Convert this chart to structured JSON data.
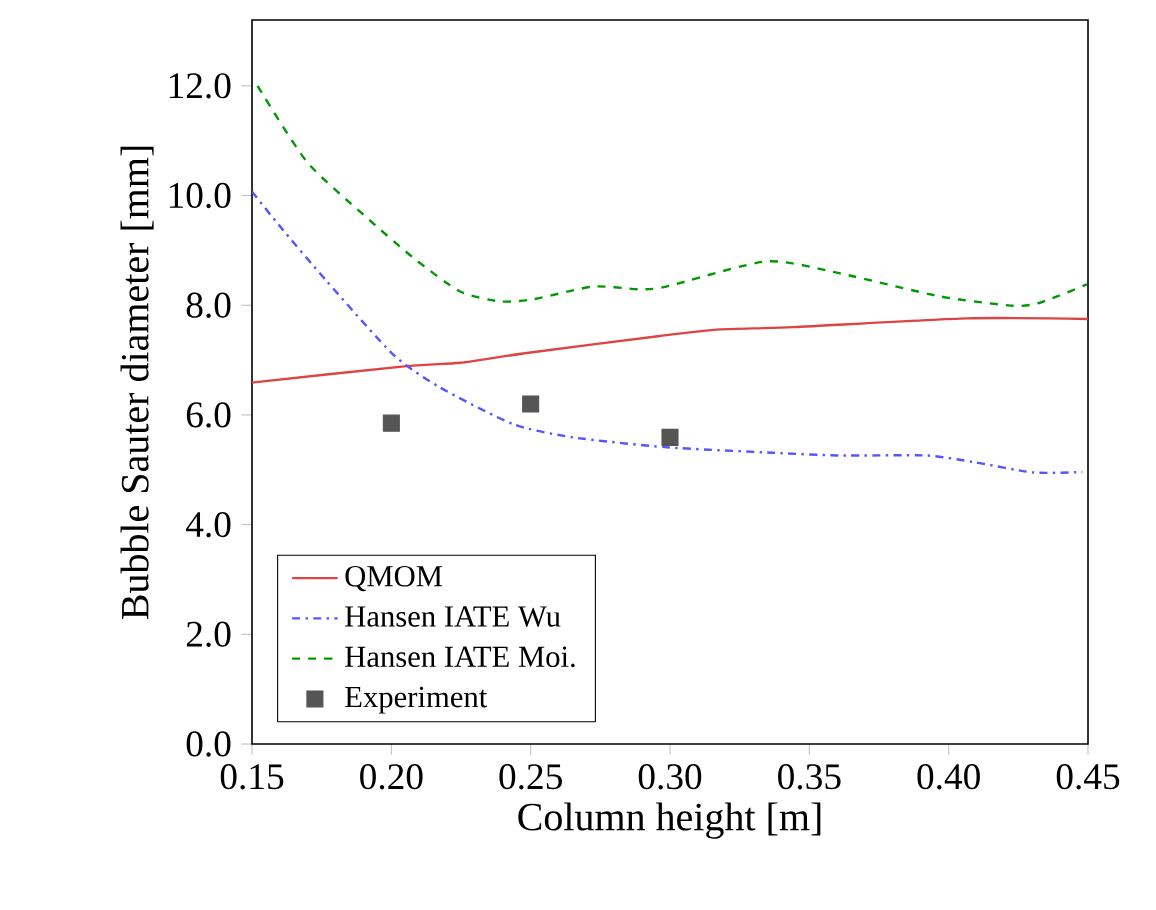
{
  "chart_data": {
    "type": "line",
    "xlabel": "Column height [m]",
    "ylabel": "Bubble Sauter diameter [mm]",
    "xlim": [
      0.15,
      0.45
    ],
    "ylim": [
      0,
      13.2
    ],
    "xticks": [
      0.15,
      {
        "value": 0.2,
        "label": "0.20"
      },
      0.25,
      {
        "value": 0.3,
        "label": "0.30"
      },
      0.35,
      {
        "value": 0.4,
        "label": "0.40"
      },
      0.45
    ],
    "yticks": [
      {
        "value": 0,
        "label": "0.0"
      },
      {
        "value": 2,
        "label": "2.0"
      },
      {
        "value": 4,
        "label": "4.0"
      },
      {
        "value": 6,
        "label": "6.0"
      },
      {
        "value": 8,
        "label": "8.0"
      },
      {
        "value": 10,
        "label": "10.0"
      },
      {
        "value": 12,
        "label": "12.0"
      }
    ],
    "legend": "bottom left",
    "grid": false,
    "series": [
      {
        "name": "QMOM",
        "color": "#dd4444",
        "line_style": "solid",
        "x": [
          0.15,
          0.2055,
          0.2247,
          0.2486,
          0.2964,
          0.318,
          0.3443,
          0.4065,
          0.45
        ],
        "values": [
          6.59,
          6.89,
          6.95,
          7.13,
          7.44,
          7.56,
          7.6,
          7.76,
          7.75
        ]
      },
      {
        "name": "Hansen IATE Wu",
        "color": "#5555ff",
        "line_style": "dashdot",
        "x": [
          0.15,
          0.1605,
          0.1768,
          0.2007,
          0.2175,
          0.2438,
          0.2653,
          0.2988,
          0.3371,
          0.361,
          0.3921,
          0.409,
          0.4304,
          0.448
        ],
        "values": [
          10.07,
          9.41,
          8.44,
          7.1,
          6.5,
          5.83,
          5.59,
          5.41,
          5.31,
          5.26,
          5.26,
          5.14,
          4.95,
          4.96
        ]
      },
      {
        "name": "Hansen IATE Moi.",
        "color": "#009900",
        "line_style": "dashed",
        "x": [
          0.152,
          0.1696,
          0.19,
          0.208,
          0.2247,
          0.239,
          0.251,
          0.2725,
          0.289,
          0.2987,
          0.3347,
          0.361,
          0.397,
          0.4233,
          0.433,
          0.4496
        ],
        "values": [
          12.0,
          10.62,
          9.65,
          8.86,
          8.25,
          8.07,
          8.11,
          8.34,
          8.29,
          8.34,
          8.8,
          8.58,
          8.16,
          7.99,
          8.05,
          8.38
        ]
      },
      {
        "name": "Experiment",
        "type": "scatter",
        "color": "#555555",
        "marker": "square",
        "x": [
          0.2,
          0.25,
          0.3
        ],
        "values": [
          5.85,
          6.2,
          5.59
        ]
      }
    ]
  }
}
